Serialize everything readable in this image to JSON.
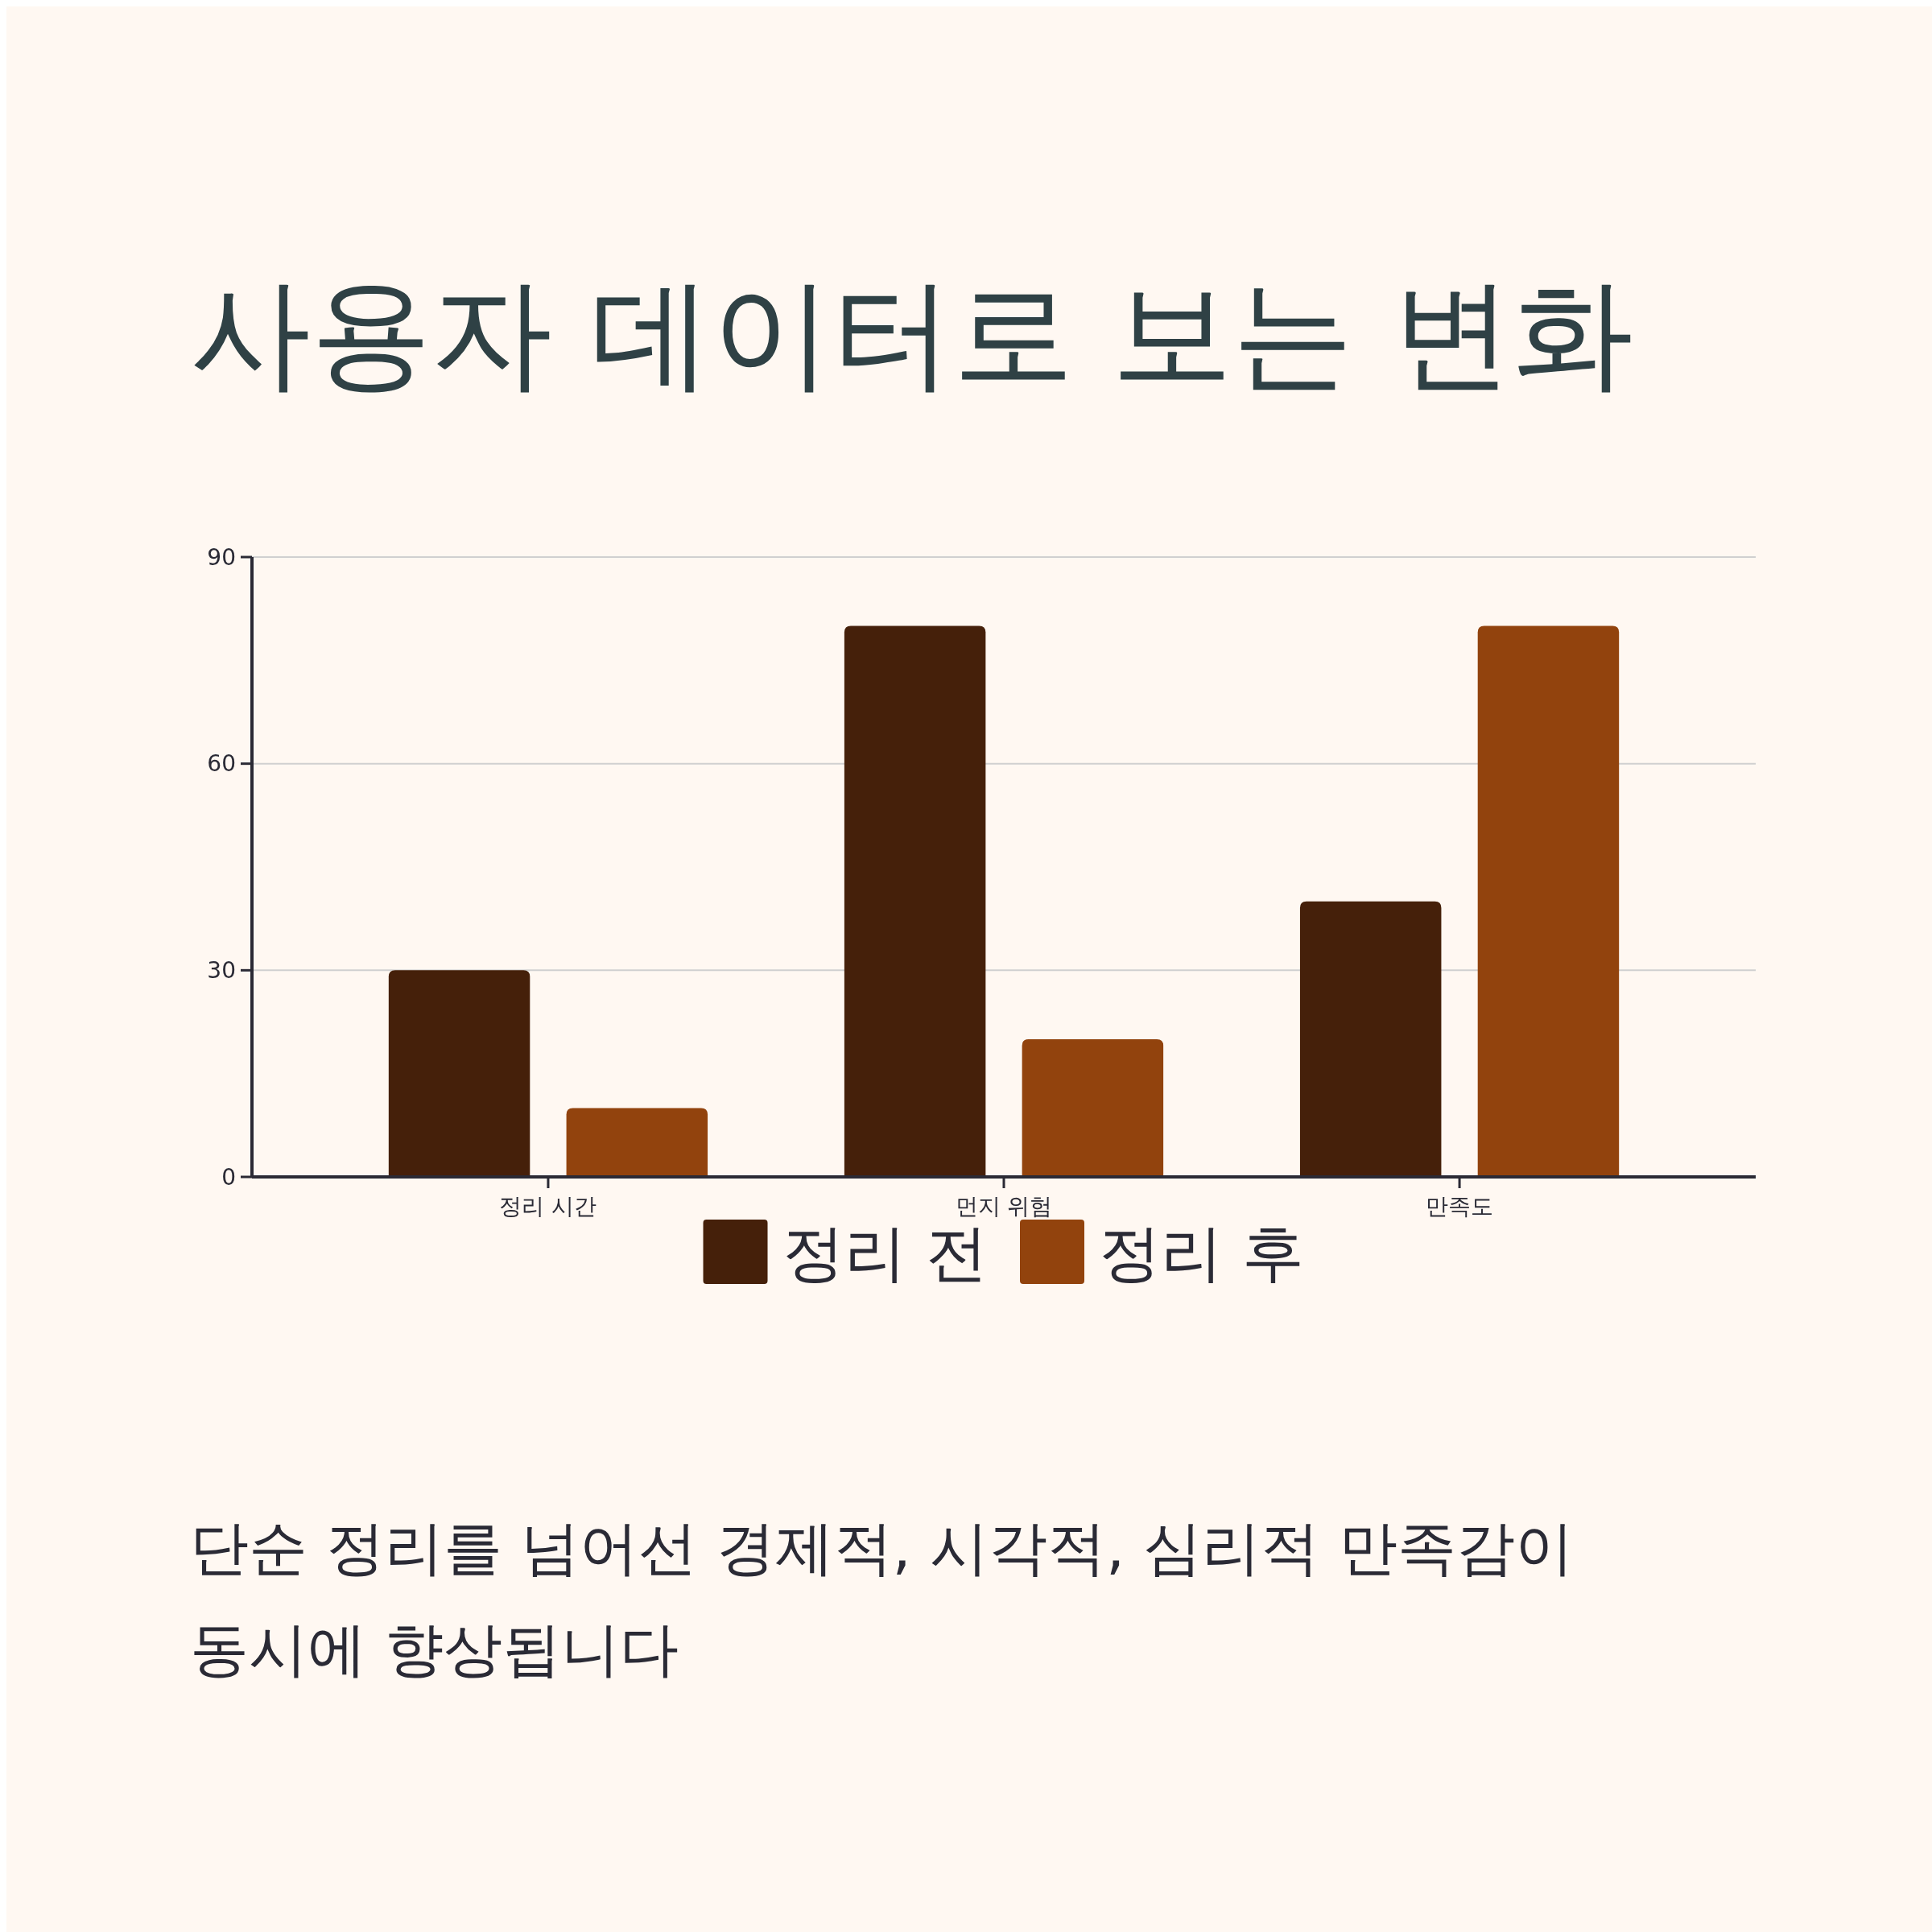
{
  "chart_data": {
    "type": "bar",
    "title": "사용자 데이터로 보는 변화",
    "categories": [
      "정리 시간",
      "먼지 위험",
      "만족도"
    ],
    "series": [
      {
        "name": "정리 전",
        "color": "#45200a",
        "values": [
          30,
          80,
          40
        ]
      },
      {
        "name": "정리 후",
        "color": "#92430d",
        "values": [
          10,
          20,
          80
        ]
      }
    ],
    "ylim": [
      0,
      90
    ],
    "yticks": [
      0,
      30,
      60,
      90
    ],
    "grid": "y",
    "legend": "bottom",
    "annotations": [
      "단순 정리를 넘어선 경제적, 시각적, 심리적 만족감이 동시에 향상됩니다"
    ]
  }
}
